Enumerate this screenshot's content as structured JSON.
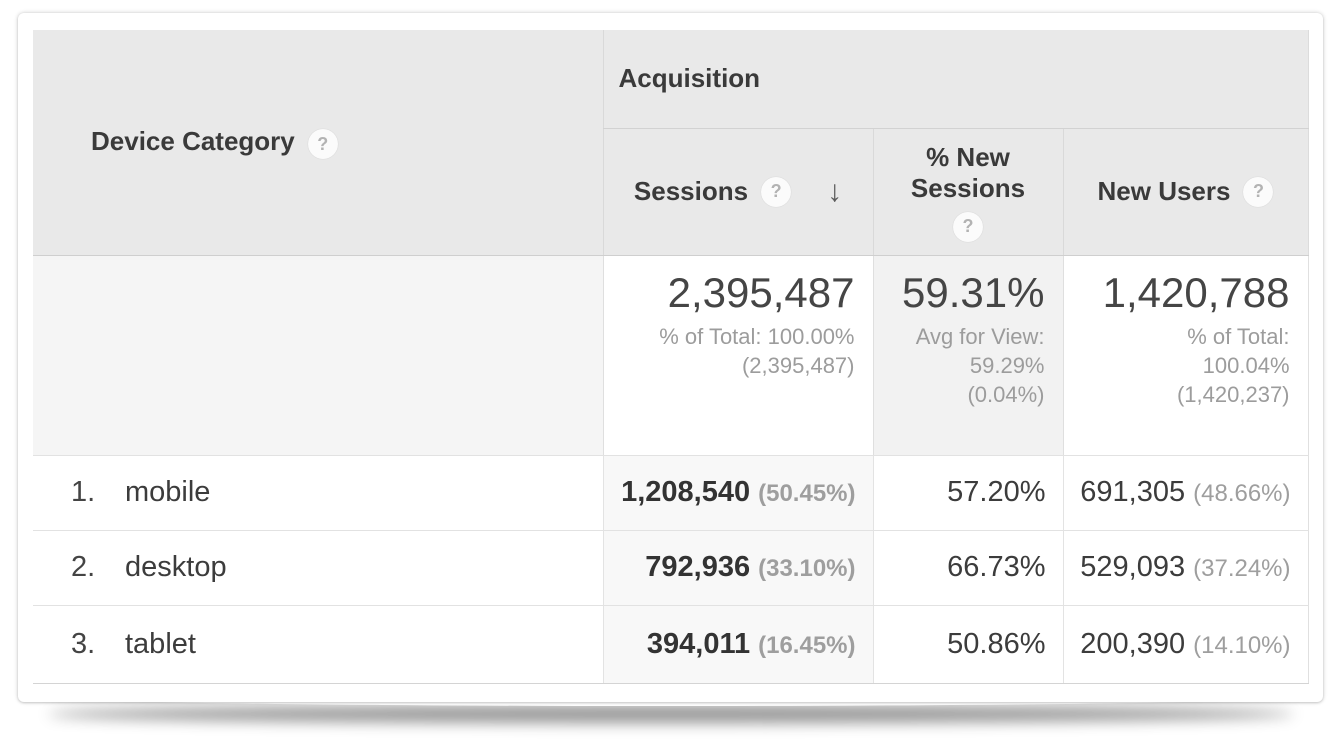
{
  "report": {
    "dimension_column": {
      "label": "Device Category"
    },
    "group_header": "Acquisition",
    "metric_columns": [
      {
        "label": "Sessions",
        "sort": "descending"
      },
      {
        "label": "% New Sessions"
      },
      {
        "label": "New Users"
      }
    ],
    "summary": {
      "sessions": {
        "value": "2,395,487",
        "notes": [
          "% of Total: 100.00%",
          "(2,395,487)"
        ]
      },
      "pct_new_sessions": {
        "value": "59.31%",
        "notes": [
          "Avg for View:",
          "59.29%",
          "(0.04%)"
        ]
      },
      "new_users": {
        "value": "1,420,788",
        "notes": [
          "% of Total:",
          "100.04%",
          "(1,420,237)"
        ]
      }
    },
    "rows": [
      {
        "rank": "1.",
        "device": "mobile",
        "sessions": "1,208,540",
        "sessions_share": "(50.45%)",
        "pct_new_sessions": "57.20%",
        "new_users": "691,305",
        "new_users_share": "(48.66%)"
      },
      {
        "rank": "2.",
        "device": "desktop",
        "sessions": "792,936",
        "sessions_share": "(33.10%)",
        "pct_new_sessions": "66.73%",
        "new_users": "529,093",
        "new_users_share": "(37.24%)"
      },
      {
        "rank": "3.",
        "device": "tablet",
        "sessions": "394,011",
        "sessions_share": "(16.45%)",
        "pct_new_sessions": "50.86%",
        "new_users": "200,390",
        "new_users_share": "(14.10%)"
      }
    ]
  },
  "icons": {
    "help": "?",
    "sort_descending": "↓"
  },
  "colors": {
    "header_bg": "#e9e9e9",
    "sorted_column_bg": "#f8f8f8",
    "summary_dim_bg": "#f5f5f5",
    "summary_pns_bg": "#f2f2f2",
    "text": "#3a3a3a",
    "muted_text": "#9c9c9c"
  }
}
